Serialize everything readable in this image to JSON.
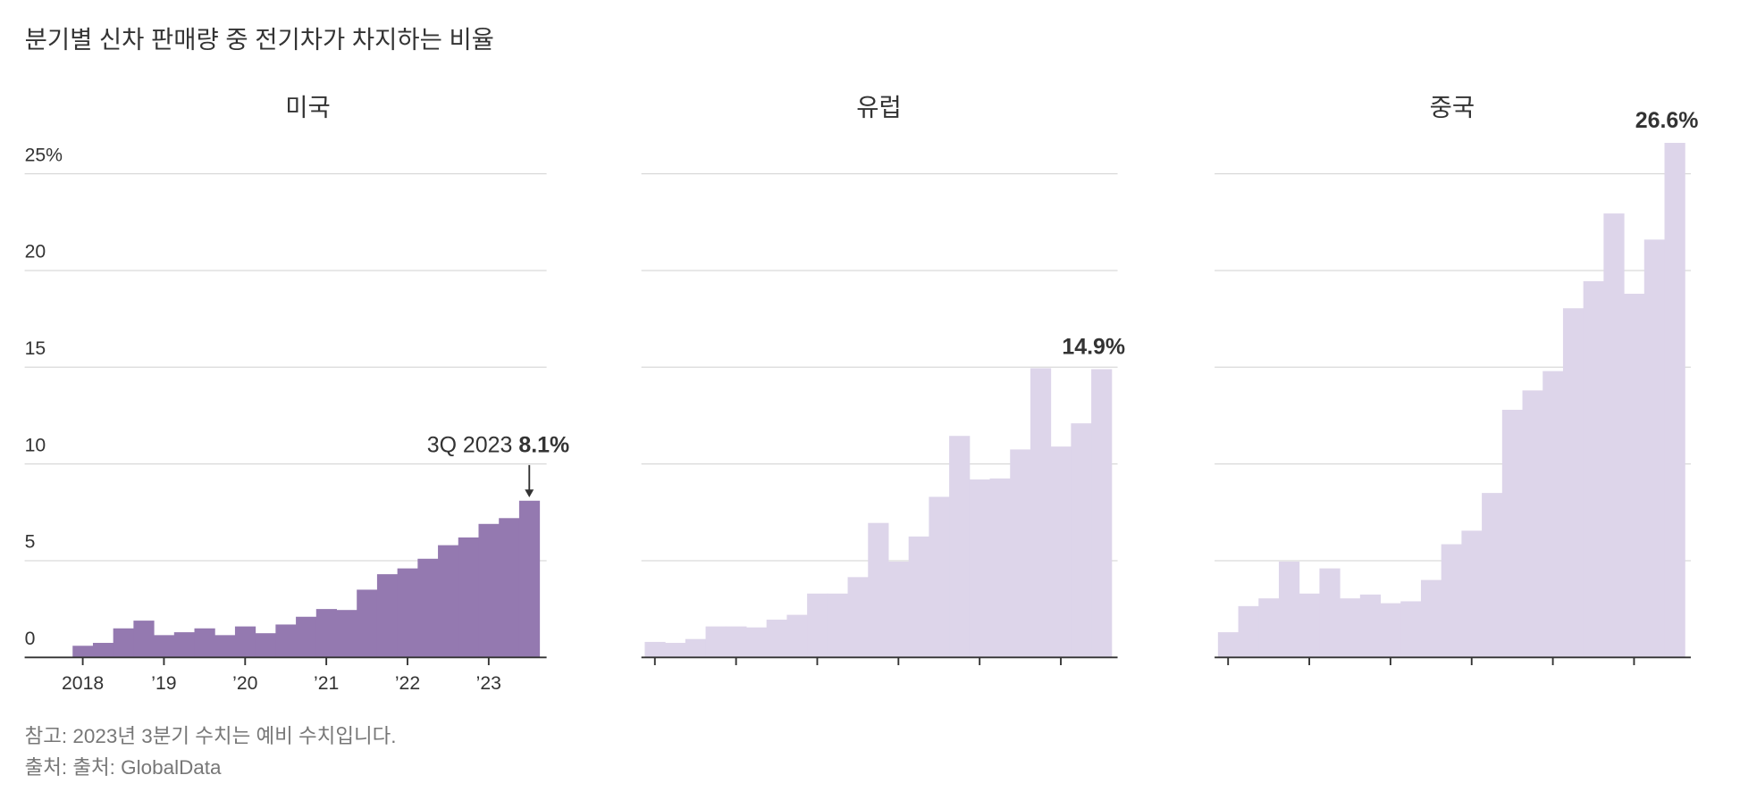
{
  "title": "분기별 신차 판매량 중 전기차가 차지하는 비율",
  "note": "참고: 2023년 3분기 수치는 예비 수치입니다.",
  "source": "출처: 출처: GlobalData",
  "chart_data": [
    {
      "type": "bar",
      "title": "미국",
      "color": "#9479b0",
      "categories": [
        "2018",
        null,
        null,
        null,
        "’19",
        null,
        null,
        null,
        "’20",
        null,
        null,
        null,
        "’21",
        null,
        null,
        null,
        "’22",
        null,
        null,
        null,
        "’23",
        null,
        null
      ],
      "values": [
        0.6,
        0.75,
        1.5,
        1.9,
        1.15,
        1.3,
        1.5,
        1.15,
        1.6,
        1.25,
        1.7,
        2.1,
        2.5,
        2.45,
        3.5,
        4.3,
        4.6,
        5.1,
        5.8,
        6.2,
        6.9,
        7.2,
        8.1
      ],
      "value_labels": [
        null,
        null,
        null,
        null,
        null,
        null,
        null,
        null,
        null,
        null,
        null,
        null,
        null,
        null,
        null,
        null,
        null,
        null,
        null,
        null,
        null,
        null,
        "8.1%"
      ],
      "annotation": "3Q 2023",
      "ylim": [
        0,
        25
      ],
      "yticks": [
        0,
        5,
        10,
        15,
        20,
        {
          "value": 25,
          "label": "25%"
        }
      ],
      "grid": true,
      "show_ytick_labels": true
    },
    {
      "type": "bar",
      "title": "유럽",
      "color": "#ddd5ea",
      "categories": [
        null,
        null,
        null,
        null,
        null,
        null,
        null,
        null,
        null,
        null,
        null,
        null,
        null,
        null,
        null,
        null,
        null,
        null,
        null,
        null,
        null,
        null,
        null
      ],
      "values": [
        0.8,
        0.75,
        0.95,
        1.6,
        1.6,
        1.55,
        1.95,
        2.2,
        3.3,
        3.3,
        4.15,
        6.95,
        4.95,
        6.25,
        8.3,
        11.45,
        9.2,
        9.25,
        10.75,
        14.95,
        10.9,
        12.1,
        14.9
      ],
      "value_labels": [
        null,
        null,
        null,
        null,
        null,
        null,
        null,
        null,
        null,
        null,
        null,
        null,
        null,
        null,
        null,
        null,
        null,
        null,
        null,
        null,
        null,
        null,
        "14.9%"
      ],
      "ylim": [
        0,
        25
      ],
      "yticks": [
        0,
        5,
        10,
        15,
        20,
        25
      ],
      "grid": true,
      "show_ytick_labels": false
    },
    {
      "type": "bar",
      "title": "중국",
      "color": "#ddd5ea",
      "categories": [
        null,
        null,
        null,
        null,
        null,
        null,
        null,
        null,
        null,
        null,
        null,
        null,
        null,
        null,
        null,
        null,
        null,
        null,
        null,
        null,
        null,
        null,
        null
      ],
      "values": [
        1.3,
        2.65,
        3.05,
        4.95,
        3.3,
        4.6,
        3.05,
        3.25,
        2.8,
        2.9,
        4.0,
        5.85,
        6.55,
        8.5,
        12.8,
        13.8,
        14.8,
        18.05,
        19.45,
        22.95,
        18.8,
        21.6,
        26.6
      ],
      "value_labels": [
        null,
        null,
        null,
        null,
        null,
        null,
        null,
        null,
        null,
        null,
        null,
        null,
        null,
        null,
        null,
        null,
        null,
        null,
        null,
        null,
        null,
        null,
        "26.6%"
      ],
      "ylim": [
        0,
        25
      ],
      "yticks": [
        0,
        5,
        10,
        15,
        20,
        25
      ],
      "grid": true,
      "show_ytick_labels": false
    }
  ]
}
